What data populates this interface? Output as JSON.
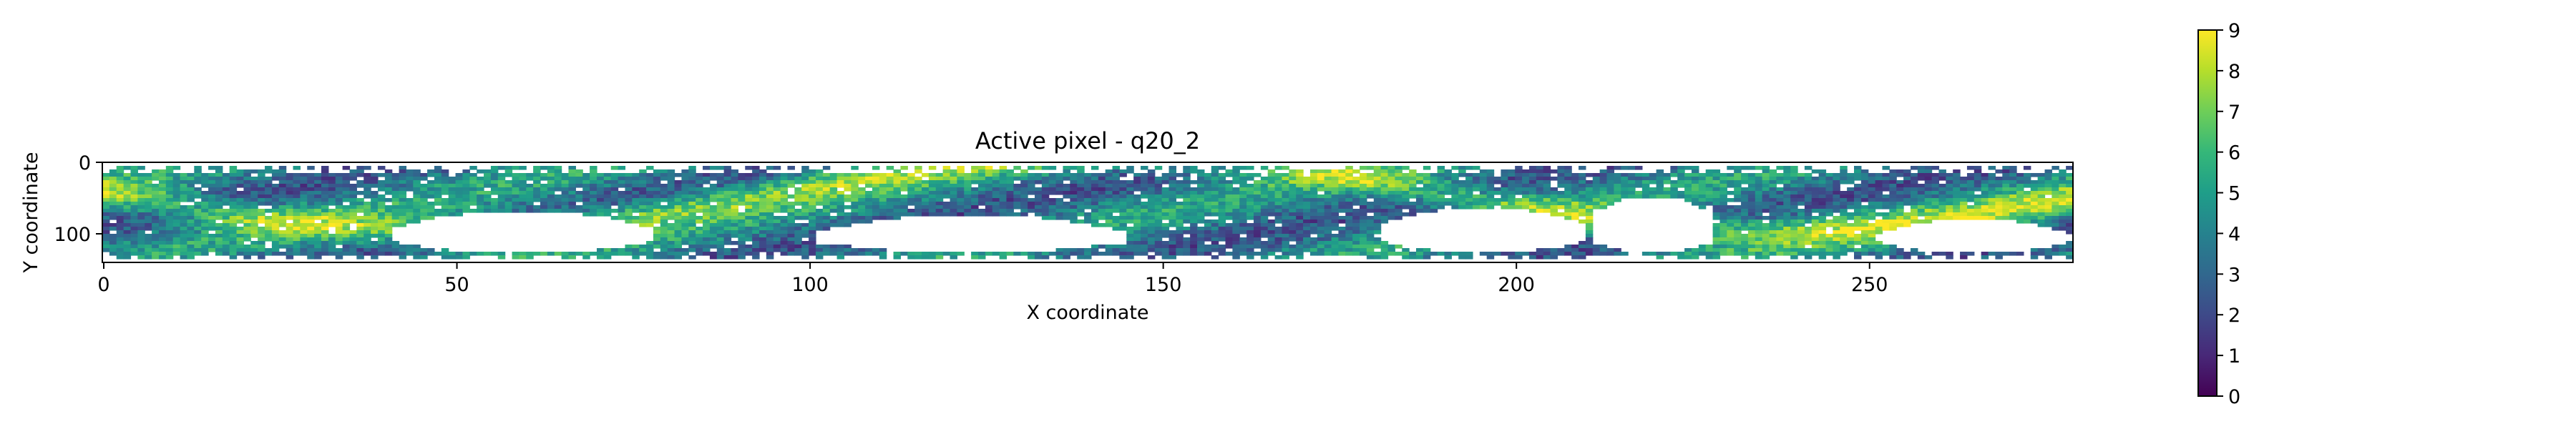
{
  "chart_data": {
    "type": "heatmap",
    "title": "Active pixel - q20_2",
    "xlabel": "X coordinate",
    "ylabel": "Y coordinate",
    "xlim": [
      0,
      279
    ],
    "ylim": [
      140,
      0
    ],
    "xticks": [
      0,
      50,
      100,
      150,
      200,
      250
    ],
    "yticks": [
      0,
      100
    ],
    "colorbar": {
      "min": 0,
      "max": 9,
      "ticks": [
        0,
        1,
        2,
        3,
        4,
        5,
        6,
        7,
        8,
        9
      ],
      "colormap": "viridis"
    },
    "value_range": [
      0,
      9
    ],
    "empty_value_color": "#ffffff",
    "grid": false
  }
}
